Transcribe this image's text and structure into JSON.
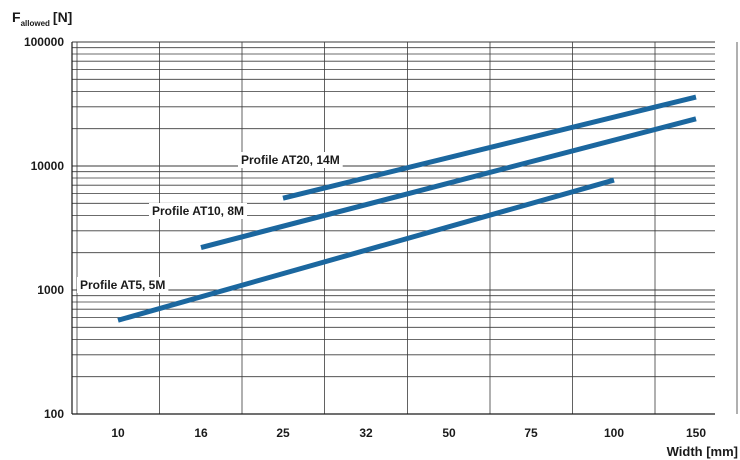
{
  "chart_data": {
    "type": "line",
    "yscale": "log",
    "ylim": [
      100,
      100000
    ],
    "x_categories": [
      "10",
      "16",
      "25",
      "32",
      "50",
      "75",
      "100",
      "150"
    ],
    "ytick_labels": [
      "100",
      "1000",
      "10000",
      "100000"
    ],
    "ylabel_main": "F",
    "ylabel_sub": "allowed",
    "ylabel_unit": "[N]",
    "xlabel": "Width [mm]",
    "grid": true,
    "series": [
      {
        "name": "Profile AT20, 14M",
        "color": "#1b679f",
        "x": [
          "25",
          "150"
        ],
        "y": [
          5500,
          36000
        ]
      },
      {
        "name": "Profile AT10, 8M",
        "color": "#1b679f",
        "x": [
          "16",
          "150"
        ],
        "y": [
          2200,
          24000
        ]
      },
      {
        "name": "Profile AT5, 5M",
        "color": "#1b679f",
        "x": [
          "10",
          "100"
        ],
        "y": [
          570,
          7700
        ]
      }
    ]
  }
}
